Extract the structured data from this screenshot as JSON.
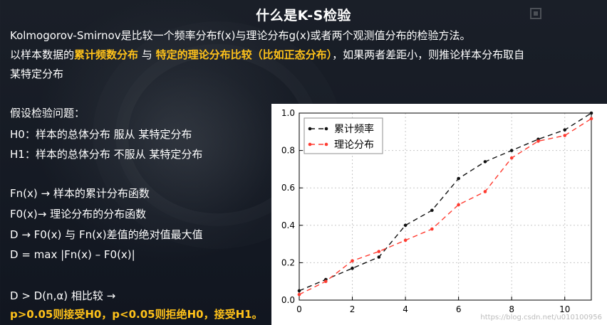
{
  "title": "什么是K-S检验",
  "intro": {
    "line1": "Kolmogorov-Smirnov是比较一个频率分布f(x)与理论分布g(x)或者两个观测值分布的检验方法。",
    "line2_prefix": "以样本数据的",
    "line2_highlight1": "累计频数分布",
    "line2_mid": " 与 ",
    "line2_highlight2": "特定的理论分布比较（比如正态分布）",
    "line2_suffix": "，如果两者差距小，则推论样本分布取自",
    "line3": "某特定分布"
  },
  "hypothesis": {
    "heading": "假设检验问题：",
    "h0": "H0：样本的总体分布 服从 某特定分布",
    "h1": "H1：样本的总体分布 不服从 某特定分布"
  },
  "definitions": {
    "fn": "Fn(x) → 样本的累计分布函数",
    "f0": "F0(x)→ 理论分布的分布函数",
    "d": "D → F0(x) 与 Fn(x)差值的绝对值最大值",
    "dmax": "D = max |Fn(x) – F0(x)|"
  },
  "decision": {
    "compare": "D > D(n,α) 相比较 →",
    "rule": "p>0.05则接受H0，p<0.05则拒绝H0，接受H1。"
  },
  "watermark": "https://blog.csdn.net/u010100956",
  "colors": {
    "accent": "#ffc21a",
    "series1": "#111111",
    "series2": "#ff3b30",
    "grid": "#c8c8c8"
  },
  "chart_data": {
    "type": "line",
    "xlim": [
      0,
      11
    ],
    "ylim": [
      0.0,
      1.0
    ],
    "xticks": [
      0,
      2,
      4,
      6,
      8,
      10
    ],
    "yticks": [
      0.0,
      0.2,
      0.4,
      0.6,
      0.8,
      1.0
    ],
    "grid": true,
    "legend": "top-left",
    "series": [
      {
        "name": "累计频率",
        "color": "#111111",
        "marker": "dot",
        "line_style": "dashed",
        "points": [
          [
            0,
            0.05
          ],
          [
            1,
            0.11
          ],
          [
            2,
            0.17
          ],
          [
            3,
            0.23
          ],
          [
            4,
            0.4
          ],
          [
            5,
            0.48
          ],
          [
            6,
            0.65
          ],
          [
            7,
            0.74
          ],
          [
            8,
            0.8
          ],
          [
            9,
            0.86
          ],
          [
            10,
            0.91
          ],
          [
            11,
            1.0
          ]
        ]
      },
      {
        "name": "理论分布",
        "color": "#ff3b30",
        "marker": "dot",
        "line_style": "dashed",
        "points": [
          [
            0,
            0.03
          ],
          [
            1,
            0.1
          ],
          [
            2,
            0.21
          ],
          [
            3,
            0.26
          ],
          [
            4,
            0.32
          ],
          [
            5,
            0.38
          ],
          [
            6,
            0.51
          ],
          [
            7,
            0.58
          ],
          [
            8,
            0.76
          ],
          [
            9,
            0.85
          ],
          [
            10,
            0.88
          ],
          [
            11,
            0.97
          ]
        ]
      }
    ]
  }
}
